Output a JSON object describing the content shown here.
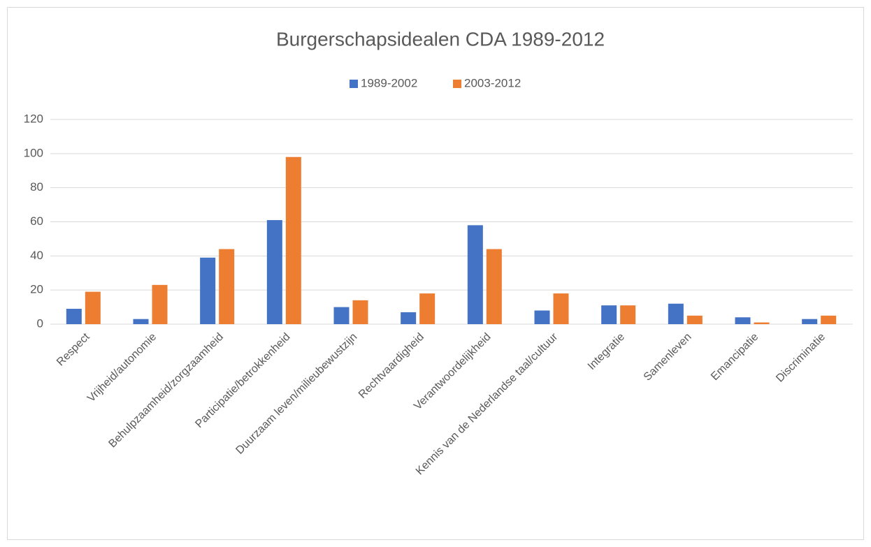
{
  "chart_data": {
    "type": "bar",
    "title": "Burgerschapsidealen CDA 1989-2012",
    "categories": [
      "Respect",
      "Vrijheid/autonomie",
      "Behulpzaamheid/zorgzaamheid",
      "Participatie/betrokkenheid",
      "Duurzaam leven/milieubewustzijn",
      "Rechtvaardigheid",
      "Verantwoordelijkheid",
      "Kennis van de Nederlandse taal/cultuur",
      "Integratie",
      "Samenleven",
      "Emancipatie",
      "Discriminatie"
    ],
    "series": [
      {
        "name": "1989-2002",
        "color": "#4472c4",
        "values": [
          9,
          3,
          39,
          61,
          10,
          7,
          58,
          8,
          11,
          12,
          4,
          3
        ]
      },
      {
        "name": "2003-2012",
        "color": "#ed7d31",
        "values": [
          19,
          23,
          44,
          98,
          14,
          18,
          44,
          18,
          11,
          5,
          1,
          5
        ]
      }
    ],
    "ylim": [
      0,
      120
    ],
    "yticks": [
      0,
      20,
      40,
      60,
      80,
      100,
      120
    ],
    "grid": true,
    "legend": "top"
  }
}
